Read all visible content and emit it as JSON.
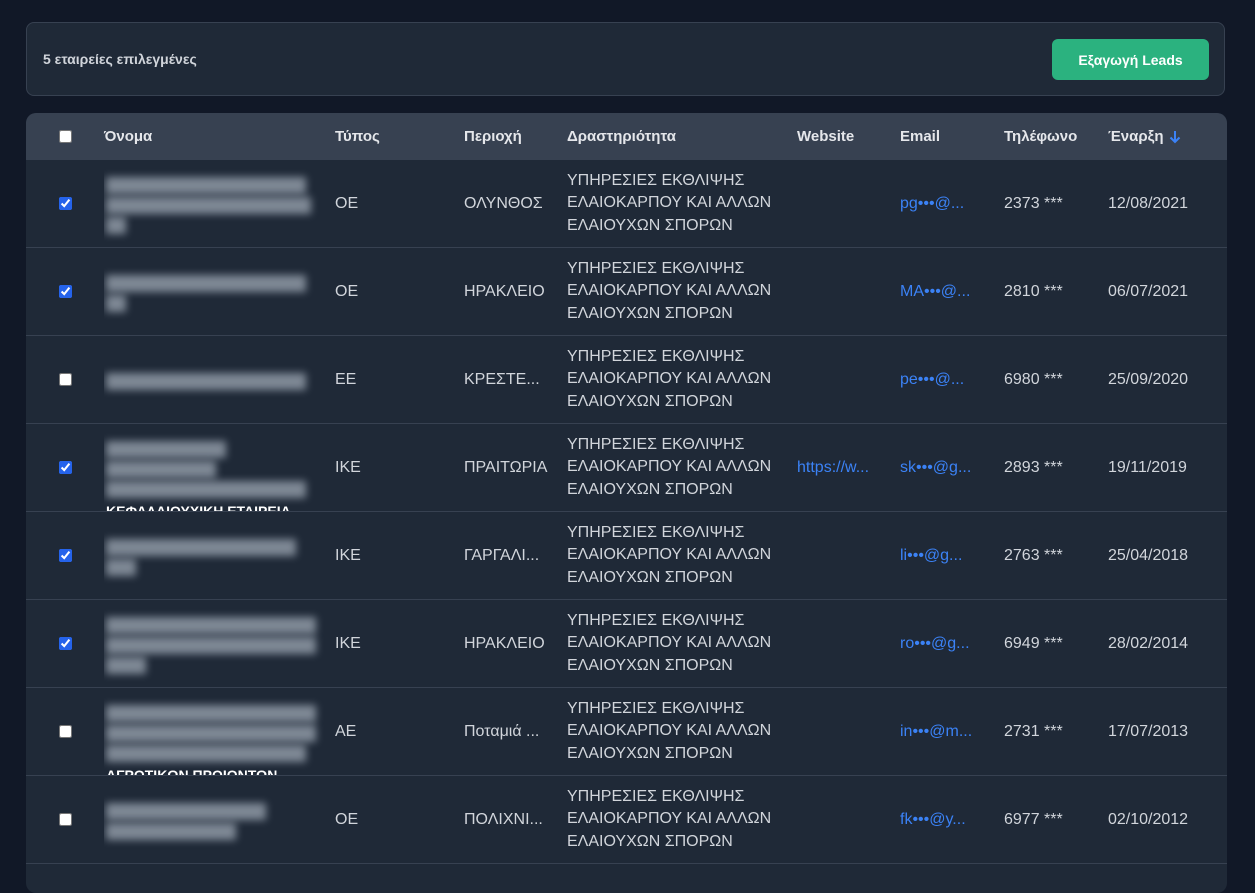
{
  "toolbar": {
    "selection": "5 εταιρείες επιλεγμένες",
    "export_button": "Εξαγωγή Leads"
  },
  "table": {
    "columns": [
      "Όνομα",
      "Τύπος",
      "Περιοχή",
      "Δραστηριότητα",
      "Website",
      "Email",
      "Τηλέφωνο",
      "Έναρξη"
    ],
    "select_all": false,
    "rows": [
      {
        "checked": true,
        "type": "ΟΕ",
        "region": "ΟΛΥΝΘΟΣ",
        "activity": "ΥΠΗΡΕΣΙΕΣ ΕΚΘΛΙΨΗΣ ΕΛΑΙΟΚΑΡΠΟΥ ΚΑΙ ΑΛΛΩΝ ΕΛΑΙΟΥΧΩΝ ΣΠΟΡΩΝ",
        "email": "pg•••@...",
        "phone": "2373 ***",
        "start": "12/08/2021"
      },
      {
        "checked": true,
        "type": "ΟΕ",
        "region": "ΗΡΑΚΛΕΙΟ",
        "activity": "ΥΠΗΡΕΣΙΕΣ ΕΚΘΛΙΨΗΣ ΕΛΑΙΟΚΑΡΠΟΥ ΚΑΙ ΑΛΛΩΝ ΕΛΑΙΟΥΧΩΝ ΣΠΟΡΩΝ",
        "email": "MA•••@...",
        "phone": "2810 ***",
        "start": "06/07/2021"
      },
      {
        "checked": false,
        "type": "ΕΕ",
        "region": "ΚΡΕΣΤΕ...",
        "activity": "ΥΠΗΡΕΣΙΕΣ ΕΚΘΛΙΨΗΣ ΕΛΑΙΟΚΑΡΠΟΥ ΚΑΙ ΑΛΛΩΝ ΕΛΑΙΟΥΧΩΝ ΣΠΟΡΩΝ",
        "email": "pe•••@...",
        "phone": "6980 ***",
        "start": "25/09/2020"
      },
      {
        "checked": true,
        "name_fragment": "ΚΕΦΑΛΑΙΟΥΧΙΚΗ ΕΤΑΙΡΕΙΑ",
        "type": "ΙΚΕ",
        "region": "ΠΡΑΙΤΩΡΙΑ",
        "activity": "ΥΠΗΡΕΣΙΕΣ ΕΚΘΛΙΨΗΣ ΕΛΑΙΟΚΑΡΠΟΥ ΚΑΙ ΑΛΛΩΝ ΕΛΑΙΟΥΧΩΝ ΣΠΟΡΩΝ",
        "website": "https://w...",
        "email": "sk•••@g...",
        "phone": "2893 ***",
        "start": "19/11/2019"
      },
      {
        "checked": true,
        "type": "ΙΚΕ",
        "region": "ΓΑΡΓΑΛΙ...",
        "activity": "ΥΠΗΡΕΣΙΕΣ ΕΚΘΛΙΨΗΣ ΕΛΑΙΟΚΑΡΠΟΥ ΚΑΙ ΑΛΛΩΝ ΕΛΑΙΟΥΧΩΝ ΣΠΟΡΩΝ",
        "email": "li•••@g...",
        "phone": "2763 ***",
        "start": "25/04/2018"
      },
      {
        "checked": true,
        "type": "ΙΚΕ",
        "region": "ΗΡΑΚΛΕΙΟ",
        "activity": "ΥΠΗΡΕΣΙΕΣ ΕΚΘΛΙΨΗΣ ΕΛΑΙΟΚΑΡΠΟΥ ΚΑΙ ΑΛΛΩΝ ΕΛΑΙΟΥΧΩΝ ΣΠΟΡΩΝ",
        "email": "ro•••@g...",
        "phone": "6949 ***",
        "start": "28/02/2014"
      },
      {
        "checked": false,
        "name_fragment": "ΑΓΡΟΤΙΚΩΝ ΠΡΟΙΟΝΤΩΝ",
        "type": "ΑΕ",
        "region": "Ποταμιά ...",
        "activity": "ΥΠΗΡΕΣΙΕΣ ΕΚΘΛΙΨΗΣ ΕΛΑΙΟΚΑΡΠΟΥ ΚΑΙ ΑΛΛΩΝ ΕΛΑΙΟΥΧΩΝ ΣΠΟΡΩΝ",
        "email": "in•••@m...",
        "phone": "2731 ***",
        "start": "17/07/2013"
      },
      {
        "checked": false,
        "type": "ΟΕ",
        "region": "ΠΟΛΙΧΝΙ...",
        "activity": "ΥΠΗΡΕΣΙΕΣ ΕΚΘΛΙΨΗΣ ΕΛΑΙΟΚΑΡΠΟΥ ΚΑΙ ΑΛΛΩΝ ΕΛΑΙΟΥΧΩΝ ΣΠΟΡΩΝ",
        "email": "fk•••@y...",
        "phone": "6977 ***",
        "start": "02/10/2012"
      }
    ]
  }
}
